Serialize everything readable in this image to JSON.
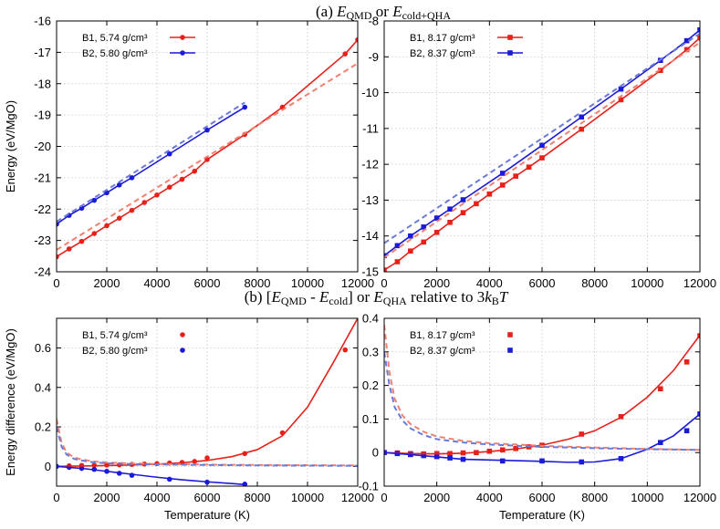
{
  "figure": {
    "title_a": "(a) E_QMD or E_cold+QHA",
    "title_b": "(b) [E_QMD - E_cold] or E_QHA relative to 3k_BT"
  },
  "colors": {
    "red": "#e8201a",
    "blue": "#1a1ad8",
    "red_dashed": "#f08070",
    "blue_dashed": "#6a7ad8",
    "grid": "#c8c8c8"
  },
  "chart_data": [
    {
      "id": "a-left",
      "type": "line",
      "xlabel": "",
      "ylabel": "Energy (eV/MgO)",
      "xlim": [
        0,
        12000
      ],
      "ylim": [
        -24,
        -16
      ],
      "xticks": [
        0,
        2000,
        4000,
        6000,
        8000,
        10000,
        12000
      ],
      "yticks": [
        -24,
        -23,
        -22,
        -21,
        -20,
        -19,
        -18,
        -17,
        -16
      ],
      "legend_position": "top-left",
      "series": [
        {
          "name": "B1, 5.74 g/cm³",
          "color": "red",
          "marker": "circle",
          "style": "solid",
          "x": [
            0,
            500,
            1000,
            1500,
            2000,
            2500,
            3000,
            3500,
            4000,
            4500,
            5000,
            5500,
            6000,
            7500,
            9000,
            11500,
            12000
          ],
          "y": [
            -23.52,
            -23.27,
            -23.03,
            -22.78,
            -22.53,
            -22.29,
            -22.04,
            -21.79,
            -21.55,
            -21.3,
            -21.05,
            -20.79,
            -20.42,
            -19.62,
            -18.75,
            -17.05,
            -16.6
          ]
        },
        {
          "name": "B2, 5.80 g/cm³",
          "color": "blue",
          "marker": "circle",
          "style": "solid",
          "x": [
            0,
            500,
            1000,
            1500,
            2000,
            2500,
            3000,
            4500,
            6000,
            7500
          ],
          "y": [
            -22.48,
            -22.2,
            -21.97,
            -21.72,
            -21.48,
            -21.23,
            -21.0,
            -20.24,
            -19.48,
            -18.75
          ]
        },
        {
          "color": "red_dashed",
          "marker": "none",
          "style": "dashed",
          "x": [
            0,
            12000
          ],
          "y": [
            -23.3,
            -17.35
          ]
        },
        {
          "color": "blue_dashed",
          "marker": "none",
          "style": "dashed",
          "x": [
            0,
            7500
          ],
          "y": [
            -22.4,
            -18.6
          ]
        }
      ]
    },
    {
      "id": "a-right",
      "type": "line",
      "xlabel": "",
      "ylabel": "",
      "xlim": [
        0,
        12000
      ],
      "ylim": [
        -15,
        -8
      ],
      "xticks": [
        0,
        2000,
        4000,
        6000,
        8000,
        10000,
        12000
      ],
      "yticks": [
        -15,
        -14,
        -13,
        -12,
        -11,
        -10,
        -9,
        -8
      ],
      "legend_position": "top-left",
      "series": [
        {
          "name": "B1, 8.17 g/cm³",
          "color": "red",
          "marker": "square",
          "style": "solid",
          "x": [
            0,
            500,
            1000,
            1500,
            2000,
            2500,
            3000,
            3500,
            4000,
            4500,
            5000,
            5500,
            6000,
            7500,
            9000,
            10500,
            11500,
            12000
          ],
          "y": [
            -14.95,
            -14.72,
            -14.42,
            -14.17,
            -13.9,
            -13.62,
            -13.35,
            -13.1,
            -12.83,
            -12.58,
            -12.33,
            -12.08,
            -11.82,
            -11.02,
            -10.2,
            -9.38,
            -8.8,
            -8.47
          ]
        },
        {
          "name": "B2, 8.37 g/cm³",
          "color": "blue",
          "marker": "square",
          "style": "solid",
          "x": [
            0,
            500,
            1000,
            1500,
            2000,
            2500,
            3000,
            4500,
            6000,
            7500,
            9000,
            10500,
            11500,
            12000
          ],
          "y": [
            -14.55,
            -14.27,
            -14.0,
            -13.75,
            -13.5,
            -13.25,
            -12.99,
            -12.25,
            -11.47,
            -10.68,
            -9.9,
            -9.1,
            -8.55,
            -8.25
          ]
        },
        {
          "color": "red_dashed",
          "marker": "none",
          "style": "dashed",
          "x": [
            0,
            12000
          ],
          "y": [
            -14.6,
            -8.6
          ]
        },
        {
          "color": "blue_dashed",
          "marker": "none",
          "style": "dashed",
          "x": [
            0,
            12000
          ],
          "y": [
            -14.2,
            -8.35
          ]
        }
      ]
    },
    {
      "id": "b-left",
      "type": "scatter",
      "xlabel": "Temperature (K)",
      "ylabel": "Energy difference (eV/MgO)",
      "xlim": [
        0,
        12000
      ],
      "ylim": [
        -0.1,
        0.75
      ],
      "xticks": [
        0,
        2000,
        4000,
        6000,
        8000,
        10000,
        12000
      ],
      "yticks": [
        0,
        0.2,
        0.4,
        0.6
      ],
      "legend_position": "top-left",
      "series": [
        {
          "name": "B1, 5.74 g/cm³",
          "color": "red",
          "marker": "circle",
          "x": [
            500,
            1000,
            1500,
            2000,
            2500,
            3000,
            3500,
            4000,
            4500,
            5000,
            5500,
            6000,
            7500,
            9000,
            11500
          ],
          "y": [
            0.003,
            0.005,
            0.006,
            0.007,
            0.008,
            0.01,
            0.012,
            0.014,
            0.017,
            0.02,
            0.025,
            0.043,
            0.065,
            0.17,
            0.59
          ]
        },
        {
          "name": "B2, 5.80 g/cm³",
          "color": "blue",
          "marker": "circle",
          "x": [
            0,
            500,
            1000,
            1500,
            2000,
            2500,
            3000,
            4500,
            6000,
            7500
          ],
          "y": [
            0.0,
            -0.005,
            -0.01,
            -0.015,
            -0.025,
            -0.035,
            -0.045,
            -0.065,
            -0.08,
            -0.09
          ]
        },
        {
          "color": "red",
          "marker": "none",
          "style": "solid",
          "x": [
            0,
            1000,
            2000,
            3000,
            4000,
            5000,
            6000,
            7000,
            8000,
            9000,
            10000,
            11000,
            12000
          ],
          "y": [
            0.0,
            0.002,
            0.004,
            0.007,
            0.011,
            0.018,
            0.03,
            0.05,
            0.085,
            0.155,
            0.3,
            0.52,
            0.75
          ]
        },
        {
          "color": "blue",
          "marker": "none",
          "style": "solid",
          "x": [
            0,
            1000,
            2000,
            3000,
            4000,
            5000,
            6000,
            7000,
            7500
          ],
          "y": [
            0.0,
            -0.01,
            -0.025,
            -0.04,
            -0.055,
            -0.068,
            -0.078,
            -0.087,
            -0.092
          ]
        },
        {
          "color": "red_dashed",
          "marker": "none",
          "style": "dashed",
          "x": [
            0,
            200,
            400,
            700,
            1000,
            1500,
            2000,
            3000,
            4000,
            6000,
            8000,
            10000,
            12000
          ],
          "y": [
            0.24,
            0.12,
            0.07,
            0.045,
            0.035,
            0.025,
            0.02,
            0.015,
            0.012,
            0.009,
            0.007,
            0.006,
            0.005
          ]
        },
        {
          "color": "blue_dashed",
          "marker": "none",
          "style": "dashed",
          "x": [
            0,
            200,
            400,
            700,
            1000,
            1500,
            2000,
            3000,
            4000,
            6000,
            8000,
            10000,
            12000
          ],
          "y": [
            0.2,
            0.1,
            0.06,
            0.038,
            0.03,
            0.02,
            0.016,
            0.012,
            0.01,
            0.007,
            0.005,
            0.004,
            0.003
          ]
        }
      ]
    },
    {
      "id": "b-right",
      "type": "scatter",
      "xlabel": "Temperature (K)",
      "ylabel": "",
      "xlim": [
        0,
        12000
      ],
      "ylim": [
        -0.1,
        0.4
      ],
      "xticks": [
        0,
        2000,
        4000,
        6000,
        8000,
        10000,
        12000
      ],
      "yticks": [
        -0.1,
        0,
        0.1,
        0.2,
        0.3,
        0.4
      ],
      "legend_position": "top-left",
      "series": [
        {
          "name": "B1, 8.17 g/cm³",
          "color": "red",
          "marker": "square",
          "x": [
            0,
            500,
            1000,
            1500,
            2000,
            2500,
            3000,
            3500,
            4000,
            4500,
            5000,
            5500,
            6000,
            7500,
            9000,
            10500,
            11500,
            12000
          ],
          "y": [
            0.0,
            -0.001,
            -0.003,
            -0.004,
            -0.003,
            -0.003,
            -0.001,
            0.0,
            0.004,
            0.008,
            0.012,
            0.017,
            0.022,
            0.055,
            0.107,
            0.19,
            0.27,
            0.348
          ]
        },
        {
          "name": "B2, 8.37 g/cm³",
          "color": "blue",
          "marker": "square",
          "x": [
            0,
            500,
            1000,
            1500,
            2000,
            2500,
            3000,
            4500,
            6000,
            7500,
            9000,
            10500,
            11500,
            12000
          ],
          "y": [
            0.0,
            -0.003,
            -0.006,
            -0.009,
            -0.012,
            -0.016,
            -0.02,
            -0.025,
            -0.025,
            -0.028,
            -0.018,
            0.03,
            0.065,
            0.115
          ]
        },
        {
          "color": "red",
          "marker": "none",
          "style": "solid",
          "x": [
            0,
            1000,
            2000,
            3000,
            4000,
            5000,
            6000,
            7000,
            8000,
            9000,
            10000,
            11000,
            12000
          ],
          "y": [
            0.0,
            -0.003,
            -0.004,
            -0.002,
            0.003,
            0.011,
            0.022,
            0.04,
            0.065,
            0.105,
            0.165,
            0.245,
            0.35
          ]
        },
        {
          "color": "blue",
          "marker": "none",
          "style": "solid",
          "x": [
            0,
            1000,
            2000,
            3000,
            4000,
            5000,
            6000,
            7000,
            8000,
            9000,
            10000,
            11000,
            12000
          ],
          "y": [
            0.0,
            -0.006,
            -0.013,
            -0.02,
            -0.022,
            -0.024,
            -0.026,
            -0.029,
            -0.028,
            -0.018,
            0.01,
            0.05,
            0.115
          ]
        },
        {
          "color": "red_dashed",
          "marker": "none",
          "style": "dashed",
          "x": [
            0,
            200,
            400,
            700,
            1000,
            1500,
            2000,
            3000,
            4000,
            6000,
            8000,
            10000,
            12000
          ],
          "y": [
            0.38,
            0.24,
            0.16,
            0.11,
            0.085,
            0.062,
            0.048,
            0.035,
            0.028,
            0.02,
            0.015,
            0.011,
            0.008
          ]
        },
        {
          "color": "blue_dashed",
          "marker": "none",
          "style": "dashed",
          "x": [
            0,
            200,
            400,
            700,
            1000,
            1500,
            2000,
            3000,
            4000,
            6000,
            8000,
            10000,
            12000
          ],
          "y": [
            0.3,
            0.2,
            0.135,
            0.095,
            0.072,
            0.052,
            0.04,
            0.03,
            0.024,
            0.017,
            0.013,
            0.01,
            0.008
          ]
        }
      ]
    }
  ]
}
